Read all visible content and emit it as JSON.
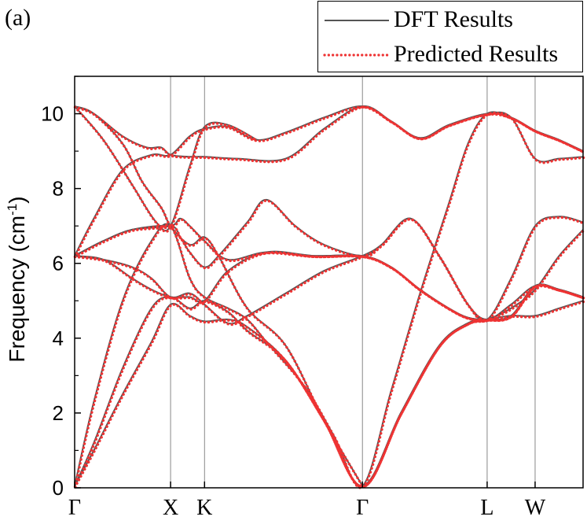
{
  "panel_label": "(a)",
  "chart_data": {
    "type": "line",
    "title": "",
    "xlabel": "",
    "ylabel": "Frequency",
    "ylabel_unit": "(cm",
    "ylabel_exp": "-1",
    "ylabel_close": ")",
    "ylim": [
      0,
      11
    ],
    "yticks": [
      0,
      2,
      4,
      6,
      8,
      10
    ],
    "grid": "vertical lines at high-symmetry points",
    "legend_position": "top-right, above plot",
    "kpoints": [
      {
        "label": "Γ",
        "x": 0
      },
      {
        "label": "X",
        "x": 1.0
      },
      {
        "label": "K",
        "x": 1.354
      },
      {
        "label": "Γ",
        "x": 3.0
      },
      {
        "label": "L",
        "x": 4.3
      },
      {
        "label": "W",
        "x": 4.8
      },
      {
        "label": "",
        "x": 5.3
      }
    ],
    "series": [
      {
        "name": "DFT Results",
        "color": "#555555",
        "style": "solid"
      },
      {
        "name": "Predicted Results",
        "color": "#ee3333",
        "style": "dotted"
      }
    ],
    "bands": [
      [
        [
          0,
          0.05
        ],
        [
          0.2,
          1.0
        ],
        [
          0.5,
          2.5
        ],
        [
          0.8,
          3.9
        ],
        [
          1.0,
          4.9
        ],
        [
          1.2,
          4.6
        ],
        [
          1.354,
          4.45
        ],
        [
          1.6,
          4.5
        ],
        [
          1.8,
          4.3
        ],
        [
          2.2,
          3.4
        ],
        [
          2.6,
          1.8
        ],
        [
          3.0,
          0.05
        ],
        [
          3.4,
          2.0
        ],
        [
          3.8,
          3.8
        ],
        [
          4.1,
          4.4
        ],
        [
          4.3,
          4.5
        ],
        [
          4.55,
          4.6
        ],
        [
          4.8,
          4.6
        ],
        [
          5.05,
          4.8
        ],
        [
          5.3,
          5.0
        ]
      ],
      [
        [
          0,
          0.05
        ],
        [
          0.2,
          1.2
        ],
        [
          0.5,
          3.2
        ],
        [
          0.8,
          4.8
        ],
        [
          1.0,
          5.1
        ],
        [
          1.2,
          4.8
        ],
        [
          1.354,
          5.0
        ],
        [
          1.6,
          4.7
        ],
        [
          1.8,
          4.2
        ],
        [
          2.2,
          3.4
        ],
        [
          2.6,
          1.8
        ],
        [
          3.0,
          0.05
        ],
        [
          3.4,
          2.0
        ],
        [
          3.8,
          3.8
        ],
        [
          4.1,
          4.4
        ],
        [
          4.3,
          4.5
        ],
        [
          4.55,
          4.8
        ],
        [
          4.8,
          5.3
        ],
        [
          5.05,
          6.2
        ],
        [
          5.3,
          6.9
        ]
      ],
      [
        [
          0,
          0.05
        ],
        [
          0.2,
          2.3
        ],
        [
          0.5,
          5.0
        ],
        [
          0.8,
          6.6
        ],
        [
          1.0,
          7.0
        ],
        [
          1.2,
          5.6
        ],
        [
          1.354,
          5.1
        ],
        [
          1.6,
          4.8
        ],
        [
          1.8,
          4.5
        ],
        [
          2.0,
          3.9
        ],
        [
          2.4,
          2.7
        ],
        [
          2.7,
          1.4
        ],
        [
          3.0,
          0.05
        ],
        [
          3.3,
          2.6
        ],
        [
          3.6,
          5.2
        ],
        [
          3.9,
          7.6
        ],
        [
          4.1,
          9.2
        ],
        [
          4.3,
          10.0
        ],
        [
          4.55,
          9.9
        ],
        [
          4.8,
          9.55
        ],
        [
          5.05,
          9.3
        ],
        [
          5.3,
          9.0
        ]
      ],
      [
        [
          0,
          6.2
        ],
        [
          0.3,
          6.1
        ],
        [
          0.6,
          5.6
        ],
        [
          0.8,
          5.3
        ],
        [
          1.0,
          5.1
        ],
        [
          1.2,
          5.1
        ],
        [
          1.354,
          5.0
        ],
        [
          1.6,
          5.8
        ],
        [
          2.0,
          6.3
        ],
        [
          2.5,
          6.2
        ],
        [
          3.0,
          6.2
        ],
        [
          3.3,
          5.9
        ],
        [
          3.6,
          5.3
        ],
        [
          3.9,
          4.8
        ],
        [
          4.1,
          4.55
        ],
        [
          4.3,
          4.5
        ],
        [
          4.55,
          4.6
        ],
        [
          4.8,
          5.4
        ],
        [
          5.05,
          5.3
        ],
        [
          5.3,
          5.1
        ]
      ],
      [
        [
          0,
          6.2
        ],
        [
          0.3,
          6.1
        ],
        [
          0.6,
          5.9
        ],
        [
          0.8,
          5.6
        ],
        [
          1.0,
          5.1
        ],
        [
          1.2,
          5.2
        ],
        [
          1.354,
          4.9
        ],
        [
          1.6,
          4.4
        ],
        [
          1.8,
          4.6
        ],
        [
          2.2,
          5.2
        ],
        [
          2.6,
          5.8
        ],
        [
          3.0,
          6.2
        ],
        [
          3.2,
          6.5
        ],
        [
          3.5,
          7.2
        ],
        [
          3.8,
          6.2
        ],
        [
          4.1,
          4.9
        ],
        [
          4.3,
          4.5
        ],
        [
          4.55,
          4.9
        ],
        [
          4.8,
          5.4
        ],
        [
          5.05,
          5.3
        ],
        [
          5.3,
          5.1
        ]
      ],
      [
        [
          0,
          6.2
        ],
        [
          0.3,
          6.6
        ],
        [
          0.6,
          6.9
        ],
        [
          1.0,
          7.0
        ],
        [
          1.1,
          6.7
        ],
        [
          1.2,
          6.3
        ],
        [
          1.354,
          5.9
        ],
        [
          1.5,
          6.2
        ],
        [
          1.8,
          7.1
        ],
        [
          2.0,
          7.7
        ],
        [
          2.3,
          7.0
        ],
        [
          2.6,
          6.5
        ],
        [
          3.0,
          6.2
        ],
        [
          3.2,
          6.5
        ],
        [
          3.5,
          7.2
        ],
        [
          3.8,
          6.2
        ],
        [
          4.1,
          4.9
        ],
        [
          4.3,
          4.5
        ],
        [
          4.55,
          5.6
        ],
        [
          4.8,
          7.0
        ],
        [
          5.05,
          7.25
        ],
        [
          5.3,
          7.1
        ]
      ],
      [
        [
          0,
          6.2
        ],
        [
          0.3,
          6.6
        ],
        [
          0.6,
          6.9
        ],
        [
          1.0,
          7.0
        ],
        [
          1.1,
          7.2
        ],
        [
          1.2,
          7.0
        ],
        [
          1.354,
          6.6
        ],
        [
          1.6,
          6.1
        ],
        [
          2.0,
          6.3
        ],
        [
          2.5,
          6.2
        ],
        [
          3.0,
          6.2
        ],
        [
          3.3,
          5.9
        ],
        [
          3.6,
          5.3
        ],
        [
          3.9,
          4.8
        ],
        [
          4.1,
          4.55
        ],
        [
          4.3,
          4.5
        ],
        [
          4.55,
          4.6
        ],
        [
          4.8,
          5.4
        ],
        [
          5.05,
          5.3
        ],
        [
          5.3,
          5.1
        ]
      ],
      [
        [
          0,
          10.2
        ],
        [
          0.2,
          10.0
        ],
        [
          0.5,
          9.4
        ],
        [
          0.75,
          9.1
        ],
        [
          0.9,
          9.1
        ],
        [
          1.0,
          8.9
        ],
        [
          1.2,
          8.85
        ],
        [
          1.354,
          8.85
        ],
        [
          1.7,
          8.8
        ],
        [
          2.2,
          8.8
        ],
        [
          2.6,
          9.6
        ],
        [
          3.0,
          10.2
        ],
        [
          3.3,
          9.8
        ],
        [
          3.6,
          9.35
        ],
        [
          3.9,
          9.7
        ],
        [
          4.3,
          10.0
        ],
        [
          4.55,
          9.9
        ],
        [
          4.8,
          8.8
        ],
        [
          5.05,
          8.8
        ],
        [
          5.3,
          8.85
        ]
      ],
      [
        [
          0,
          10.2
        ],
        [
          0.2,
          10.0
        ],
        [
          0.5,
          9.2
        ],
        [
          0.7,
          8.2
        ],
        [
          0.9,
          7.5
        ],
        [
          1.0,
          7.0
        ],
        [
          1.2,
          6.5
        ],
        [
          1.354,
          6.7
        ],
        [
          1.5,
          6.2
        ],
        [
          1.8,
          4.8
        ],
        [
          2.2,
          3.8
        ],
        [
          2.6,
          1.8
        ],
        [
          3.0,
          0.05
        ]
      ],
      [
        [
          0,
          6.2
        ],
        [
          0.2,
          7.2
        ],
        [
          0.5,
          8.5
        ],
        [
          0.8,
          8.9
        ],
        [
          1.0,
          8.9
        ],
        [
          1.2,
          9.4
        ],
        [
          1.354,
          9.6
        ],
        [
          1.6,
          9.65
        ],
        [
          1.9,
          9.3
        ],
        [
          2.2,
          9.5
        ],
        [
          2.6,
          9.9
        ],
        [
          3.0,
          10.2
        ],
        [
          3.3,
          9.8
        ],
        [
          3.6,
          9.35
        ],
        [
          3.9,
          9.7
        ],
        [
          4.3,
          10.0
        ],
        [
          4.55,
          9.9
        ],
        [
          4.8,
          9.55
        ],
        [
          5.05,
          9.3
        ],
        [
          5.3,
          9.0
        ]
      ],
      [
        [
          0,
          10.2
        ],
        [
          0.3,
          9.3
        ],
        [
          0.6,
          8.1
        ],
        [
          0.85,
          7.1
        ],
        [
          1.0,
          7.0
        ],
        [
          1.2,
          8.6
        ],
        [
          1.354,
          9.65
        ],
        [
          1.6,
          9.7
        ],
        [
          1.9,
          9.3
        ]
      ]
    ]
  }
}
